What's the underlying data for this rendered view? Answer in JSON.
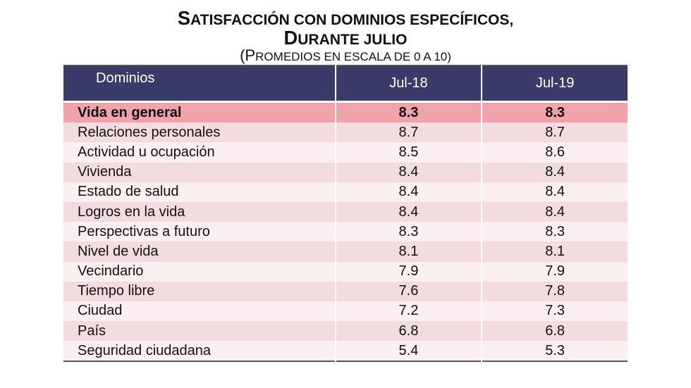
{
  "header": {
    "title": [
      "SATISFACCIÓN CON DOMINIOS ESPECÍFICOS,",
      "DURANTE JULIO"
    ],
    "subtitle": "(PROMEDIOS EN ESCALA DE 0 A 10)"
  },
  "table": {
    "columns": [
      "Dominios",
      "Jul-18",
      "Jul-19"
    ],
    "rows": [
      [
        "Vida en general",
        8.3,
        8.3
      ],
      [
        "Relaciones personales",
        8.7,
        8.7
      ],
      [
        "Actividad u ocupación",
        8.5,
        8.6
      ],
      [
        "Vivienda",
        8.4,
        8.4
      ],
      [
        "Estado de salud",
        8.4,
        8.4
      ],
      [
        "Logros en la vida",
        8.4,
        8.4
      ],
      [
        "Perspectivas a futuro",
        8.3,
        8.3
      ],
      [
        "Nivel de vida",
        8.1,
        8.1
      ],
      [
        "Vecindario",
        7.9,
        7.9
      ],
      [
        "Tiempo libre",
        7.6,
        7.8
      ],
      [
        "Ciudad",
        7.2,
        7.3
      ],
      [
        "País",
        6.8,
        6.8
      ],
      [
        "Seguridad ciudadana",
        5.4,
        5.3
      ]
    ]
  }
}
